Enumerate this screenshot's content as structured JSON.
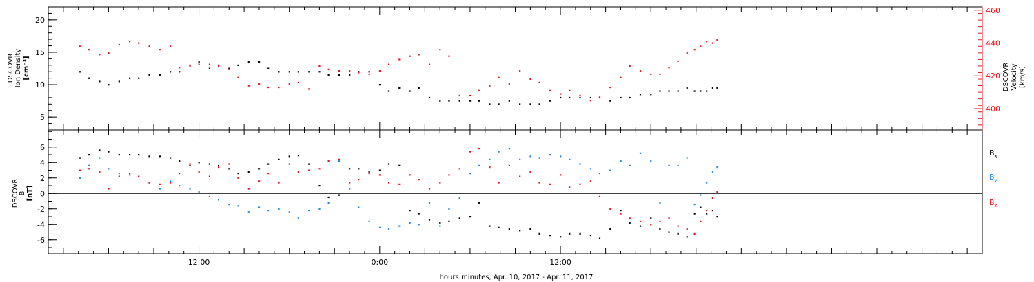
{
  "chart_data": [
    {
      "type": "scatter",
      "panel": "plasma",
      "ylabel_left": [
        "DSCOVR",
        "Ion Density",
        "[cm⁻³]"
      ],
      "ylabel_right": [
        "DSCOVR",
        "Velocity",
        "[km/s]"
      ],
      "yticks_left": [
        "20",
        "15",
        "10",
        "5"
      ],
      "yticks_right": [
        "460",
        "440",
        "420",
        "400"
      ],
      "ylim_left": [
        3,
        22
      ],
      "ylim_right": [
        387,
        462
      ],
      "colors": {
        "density": "#000000",
        "velocity": "#e8141b"
      },
      "series": [
        {
          "name": "",
          "axis": "left",
          "x": [
            -7.9,
            -7.3,
            -6.6,
            -6,
            -5.3,
            -4.6,
            -4,
            -3.3,
            -2.6,
            -1.9,
            -1.3,
            -0.6,
            0,
            0.7,
            1.3,
            2,
            2.6,
            3.3,
            4,
            4.6,
            5.3,
            6,
            6.6,
            7.3,
            8,
            8.6,
            9.3,
            10,
            10.6,
            11.3,
            12,
            12.6,
            13.3,
            14,
            14.6,
            15.3,
            16,
            16.6,
            17.3,
            18,
            18.6,
            19.3,
            19.9,
            20.6,
            21.3,
            22,
            22.6,
            23.3,
            24,
            24.6,
            25.3,
            26,
            26.6,
            27.3,
            28,
            28.6,
            29.3,
            30,
            30.6,
            31.2,
            31.8,
            32.4,
            32.9,
            33.3,
            33.7,
            34.1,
            34.4
          ],
          "y": [
            12,
            11,
            10.5,
            10,
            10.5,
            11,
            11,
            11.5,
            11.5,
            12,
            12,
            13,
            13.5,
            12.5,
            13,
            12.5,
            13,
            13.5,
            13.5,
            12.5,
            12,
            12,
            12,
            12,
            12,
            11.5,
            11.5,
            11.5,
            12,
            12,
            10,
            9,
            9.5,
            9,
            9.5,
            8,
            7.5,
            7.5,
            7.5,
            7.5,
            7.5,
            7,
            7,
            7.5,
            7,
            7,
            7,
            7.5,
            8,
            8,
            8,
            8,
            8,
            7.5,
            8,
            8,
            8.5,
            8.5,
            9,
            9,
            9,
            9.5,
            9,
            9,
            9,
            9.5,
            9.5
          ]
        },
        {
          "name": "",
          "axis": "right",
          "x": [
            -7.9,
            -7.3,
            -6.6,
            -6,
            -5.3,
            -4.6,
            -4,
            -3.3,
            -2.6,
            -1.9,
            -1.3,
            -0.6,
            0,
            0.7,
            1.3,
            2,
            2.6,
            3.3,
            4,
            4.6,
            5.3,
            6,
            6.6,
            7.3,
            8,
            8.6,
            9.3,
            10,
            10.6,
            11.3,
            12,
            12.6,
            13.3,
            14,
            14.6,
            15.3,
            16,
            16.6,
            17.3,
            18,
            18.6,
            19.3,
            19.9,
            20.6,
            21.3,
            22,
            22.6,
            23.3,
            24,
            24.6,
            25.3,
            26,
            26.6,
            27.3,
            28,
            28.6,
            29.3,
            30,
            30.6,
            31.2,
            31.8,
            32.4,
            32.9,
            33.3,
            33.7,
            34.1,
            34.4
          ],
          "y": [
            438,
            436,
            433,
            434,
            439,
            441,
            440,
            438,
            436,
            438,
            425,
            426,
            427,
            427,
            426,
            424,
            419,
            414,
            415,
            413,
            413,
            415,
            416,
            412,
            426,
            424,
            423,
            423,
            422,
            421,
            423,
            427,
            430,
            432,
            433,
            427,
            436,
            432,
            408,
            408,
            411,
            414,
            419,
            415,
            423,
            418,
            416,
            411,
            409,
            411,
            408,
            405,
            407,
            413,
            419,
            426,
            423,
            421,
            421,
            425,
            429,
            434,
            436,
            438,
            441,
            440,
            442
          ]
        }
      ]
    },
    {
      "type": "scatter",
      "panel": "magnetic-field",
      "ylabel_left": [
        "DSCOVR",
        "B",
        "[nT]"
      ],
      "yticks_left": [
        "6",
        "4",
        "2",
        "0",
        "-2",
        "-4",
        "-6"
      ],
      "ylim_left": [
        -7.8,
        8.2
      ],
      "zero_line": true,
      "legend_position": "right",
      "legend": [
        {
          "label": "B",
          "sub": "x",
          "color": "#000000"
        },
        {
          "label": "B",
          "sub": "y",
          "color": "#1e88e5"
        },
        {
          "label": "B",
          "sub": "z",
          "color": "#e8141b"
        }
      ],
      "series": [
        {
          "name": "Bx",
          "x": [
            -7.9,
            -7.3,
            -6.6,
            -6,
            -5.3,
            -4.6,
            -4,
            -3.3,
            -2.6,
            -1.9,
            -1.3,
            -0.6,
            0,
            0.7,
            1.3,
            2,
            2.6,
            3.3,
            4,
            4.6,
            5.3,
            6,
            6.6,
            7.3,
            8,
            8.6,
            9.3,
            10,
            10.6,
            11.3,
            12,
            12.6,
            13.3,
            14,
            14.6,
            15.3,
            16,
            16.6,
            17.3,
            18,
            18.6,
            19.3,
            19.9,
            20.6,
            21.3,
            22,
            22.6,
            23.3,
            24,
            24.6,
            25.3,
            26,
            26.6,
            27.3,
            28,
            28.6,
            29.3,
            30,
            30.6,
            31.2,
            31.8,
            32.4,
            32.9,
            33.3,
            33.7,
            34.1,
            34.4
          ],
          "y": [
            4.6,
            5,
            5.6,
            5.4,
            5,
            5,
            5,
            4.8,
            4.8,
            4.6,
            4.2,
            3.6,
            4,
            3.8,
            3.6,
            3.2,
            2.6,
            2.8,
            3.2,
            3.8,
            4.4,
            4.8,
            4.9,
            3.8,
            1,
            -0.5,
            -0.2,
            3.2,
            3.2,
            2.8,
            3,
            3.8,
            3.6,
            -2.2,
            -2.6,
            -3.4,
            -3.8,
            -3.6,
            -3.2,
            -3,
            -1.2,
            -4.2,
            -4.4,
            -4.6,
            -4.8,
            -4.6,
            -5.2,
            -5.4,
            -5.6,
            -5.2,
            -5.2,
            -5.4,
            -5.8,
            -4.6,
            -2.2,
            -3.8,
            -4.2,
            -3.2,
            -4.6,
            -5,
            -5.2,
            -5.6,
            -2.6,
            -1.8,
            -2.6,
            -2.2,
            -3
          ]
        },
        {
          "name": "By",
          "x": [
            -7.9,
            -7.3,
            -6.6,
            -6,
            -5.3,
            -4.6,
            -4,
            -3.3,
            -2.6,
            -1.9,
            -1.3,
            -0.6,
            0,
            0.7,
            1.3,
            2,
            2.6,
            3.3,
            4,
            4.6,
            5.3,
            6,
            6.6,
            7.3,
            8,
            8.6,
            9.3,
            10,
            10.6,
            11.3,
            12,
            12.6,
            13.3,
            14,
            14.6,
            15.3,
            16,
            16.6,
            17.3,
            18,
            18.6,
            19.3,
            19.9,
            20.6,
            21.3,
            22,
            22.6,
            23.3,
            24,
            24.6,
            25.3,
            26,
            26.6,
            27.3,
            28,
            28.6,
            29.3,
            30,
            30.6,
            31.2,
            31.8,
            32.4,
            32.9,
            33.3,
            33.7,
            34.1,
            34.4
          ],
          "y": [
            2,
            3.6,
            4.6,
            3.2,
            2.6,
            2.4,
            2.2,
            1.4,
            0.6,
            1.6,
            1,
            0.6,
            0.2,
            -0.4,
            -0.8,
            -1.4,
            -1.6,
            -2.4,
            -1.8,
            -2.2,
            -2,
            -2.4,
            -3.2,
            -2.2,
            -2,
            -1.2,
            4.2,
            0.6,
            -1.8,
            -3.6,
            -4.4,
            -4.6,
            -4.2,
            -3.8,
            -4,
            -1.2,
            -4.2,
            -2,
            -0.6,
            2.6,
            3.6,
            4.4,
            5.4,
            5.8,
            4.4,
            4.8,
            4.6,
            5,
            4.8,
            4.4,
            3.8,
            3.2,
            2.6,
            3,
            4.2,
            3.6,
            5.2,
            4.2,
            -1.2,
            3.6,
            3.6,
            4.6,
            -1.4,
            -0.2,
            1.4,
            2.8,
            3.4
          ]
        },
        {
          "name": "Bz",
          "x": [
            -7.9,
            -7.3,
            -6.6,
            -6,
            -5.3,
            -4.6,
            -4,
            -3.3,
            -2.6,
            -1.9,
            -1.3,
            -0.6,
            0,
            0.7,
            1.3,
            2,
            2.6,
            3.3,
            4,
            4.6,
            5.3,
            6,
            6.6,
            7.3,
            8,
            8.6,
            9.3,
            10,
            10.6,
            11.3,
            12,
            12.6,
            13.3,
            14,
            14.6,
            15.3,
            16,
            16.6,
            17.3,
            18,
            18.6,
            19.3,
            19.9,
            20.6,
            21.3,
            22,
            22.6,
            23.3,
            24,
            24.6,
            25.3,
            26,
            26.6,
            27.3,
            28,
            28.6,
            29.3,
            30,
            30.6,
            31.2,
            31.8,
            32.4,
            32.9,
            33.3,
            33.7,
            34.1,
            34.4
          ],
          "y": [
            3,
            3.2,
            2.8,
            0.6,
            2.2,
            2.6,
            2.2,
            1.4,
            1.2,
            1.4,
            2.6,
            3.8,
            2.8,
            2.2,
            3.4,
            3.8,
            2,
            0.6,
            1.6,
            2.6,
            1.4,
            3.8,
            2.8,
            3,
            3.2,
            4.2,
            4.4,
            1.4,
            1.8,
            2.6,
            2.4,
            1.4,
            1.2,
            2.4,
            1.8,
            0.6,
            1.4,
            2.4,
            3.2,
            5.4,
            5.8,
            3.4,
            1.4,
            3.6,
            2.2,
            2.8,
            1.4,
            1.2,
            2.4,
            0.8,
            1.2,
            1.6,
            -0.4,
            -2,
            -2.6,
            -3.2,
            -3.6,
            -4,
            -3.6,
            -3.2,
            -4.2,
            -4.6,
            -5.2,
            -3.6,
            -2.2,
            -0.6,
            0.2
          ]
        }
      ]
    },
    {
      "type": "time-axis",
      "xlim_hours": [
        -10,
        52
      ],
      "major_ticks": [
        {
          "hours": 0,
          "label": "12:00"
        },
        {
          "hours": 12,
          "label": "0:00"
        },
        {
          "hours": 24,
          "label": "12:00"
        }
      ],
      "xlabel": "hours:minutes, Apr. 10, 2017 - Apr. 11, 2017"
    }
  ]
}
